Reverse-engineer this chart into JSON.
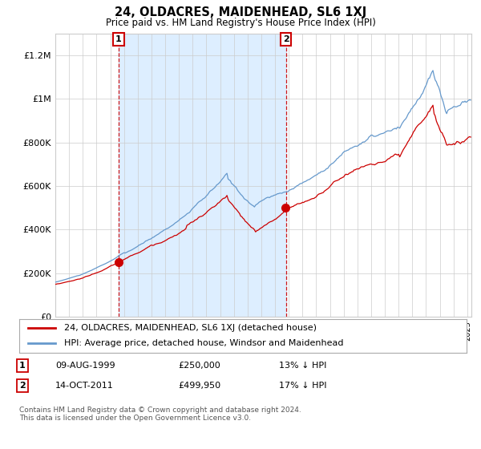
{
  "title": "24, OLDACRES, MAIDENHEAD, SL6 1XJ",
  "subtitle": "Price paid vs. HM Land Registry's House Price Index (HPI)",
  "legend_entry1": "24, OLDACRES, MAIDENHEAD, SL6 1XJ (detached house)",
  "legend_entry2": "HPI: Average price, detached house, Windsor and Maidenhead",
  "annotation1_date": "09-AUG-1999",
  "annotation1_price": "£250,000",
  "annotation1_hpi": "13% ↓ HPI",
  "annotation2_date": "14-OCT-2011",
  "annotation2_price": "£499,950",
  "annotation2_hpi": "17% ↓ HPI",
  "footnote": "Contains HM Land Registry data © Crown copyright and database right 2024.\nThis data is licensed under the Open Government Licence v3.0.",
  "red_color": "#cc0000",
  "blue_color": "#6699cc",
  "shade_color": "#ddeeff",
  "background_color": "#ffffff",
  "grid_color": "#cccccc",
  "ylim": [
    0,
    1300000
  ],
  "yticks": [
    0,
    200000,
    400000,
    600000,
    800000,
    1000000,
    1200000
  ],
  "ytick_labels": [
    "£0",
    "£200K",
    "£400K",
    "£600K",
    "£800K",
    "£1M",
    "£1.2M"
  ],
  "sale1_x": 1999.614,
  "sale1_y": 250000,
  "sale2_x": 2011.786,
  "sale2_y": 499950,
  "xmin": 1995.0,
  "xmax": 2025.3
}
